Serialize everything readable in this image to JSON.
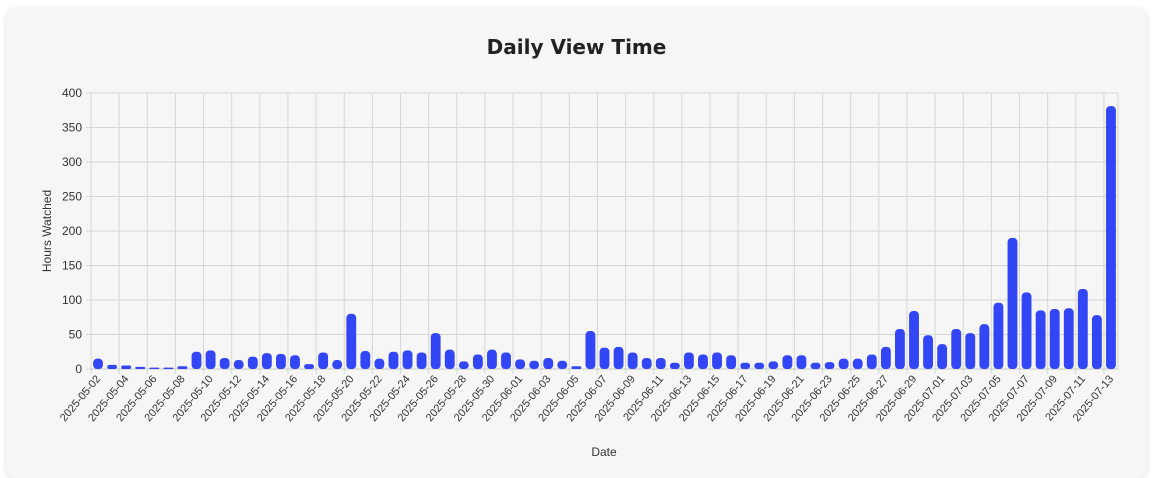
{
  "chart_data": {
    "type": "bar",
    "title": "Daily View Time",
    "xlabel": "Date",
    "ylabel": "Hours Watched",
    "ylim": [
      0,
      400
    ],
    "yticks": [
      0,
      50,
      100,
      150,
      200,
      250,
      300,
      350,
      400
    ],
    "grid": true,
    "bar_color": "#3246f5",
    "categories": [
      "2025-05-02",
      "2025-05-03",
      "2025-05-04",
      "2025-05-05",
      "2025-05-06",
      "2025-05-07",
      "2025-05-08",
      "2025-05-09",
      "2025-05-10",
      "2025-05-11",
      "2025-05-12",
      "2025-05-13",
      "2025-05-14",
      "2025-05-15",
      "2025-05-16",
      "2025-05-17",
      "2025-05-18",
      "2025-05-19",
      "2025-05-20",
      "2025-05-21",
      "2025-05-22",
      "2025-05-23",
      "2025-05-24",
      "2025-05-25",
      "2025-05-26",
      "2025-05-27",
      "2025-05-28",
      "2025-05-29",
      "2025-05-30",
      "2025-05-31",
      "2025-06-01",
      "2025-06-02",
      "2025-06-03",
      "2025-06-04",
      "2025-06-05",
      "2025-06-06",
      "2025-06-07",
      "2025-06-08",
      "2025-06-09",
      "2025-06-10",
      "2025-06-11",
      "2025-06-12",
      "2025-06-13",
      "2025-06-14",
      "2025-06-15",
      "2025-06-16",
      "2025-06-17",
      "2025-06-18",
      "2025-06-19",
      "2025-06-20",
      "2025-06-21",
      "2025-06-22",
      "2025-06-23",
      "2025-06-24",
      "2025-06-25",
      "2025-06-26",
      "2025-06-27",
      "2025-06-28",
      "2025-06-29",
      "2025-06-30",
      "2025-07-01",
      "2025-07-02",
      "2025-07-03",
      "2025-07-04",
      "2025-07-05",
      "2025-07-06",
      "2025-07-07",
      "2025-07-08",
      "2025-07-09",
      "2025-07-10",
      "2025-07-11",
      "2025-07-12",
      "2025-07-13"
    ],
    "values": [
      15,
      6,
      5,
      3,
      2,
      2,
      4,
      25,
      27,
      16,
      13,
      18,
      23,
      22,
      20,
      7,
      24,
      13,
      80,
      26,
      15,
      25,
      27,
      24,
      52,
      28,
      11,
      21,
      28,
      24,
      14,
      12,
      16,
      12,
      4,
      55,
      31,
      32,
      24,
      16,
      16,
      9,
      24,
      21,
      24,
      20,
      9,
      9,
      11,
      20,
      20,
      9,
      10,
      15,
      15,
      21,
      32,
      58,
      84,
      49,
      36,
      58,
      52,
      65,
      96,
      190,
      111,
      85,
      87,
      88,
      116,
      78,
      381
    ]
  }
}
